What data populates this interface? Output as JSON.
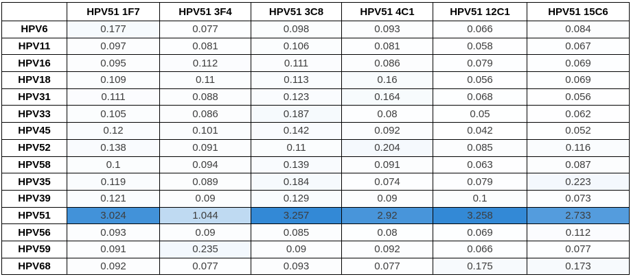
{
  "chart_data": {
    "type": "heatmap",
    "title": "",
    "corner_label": "",
    "columns": [
      "HPV51 1F7",
      "HPV51 3F4",
      "HPV51 3C8",
      "HPV51 4C1",
      "HPV51 12C1",
      "HPV51 15C6"
    ],
    "rows": [
      {
        "label": "HPV6",
        "values": [
          0.177,
          0.077,
          0.098,
          0.093,
          0.066,
          0.084
        ]
      },
      {
        "label": "HPV11",
        "values": [
          0.097,
          0.081,
          0.106,
          0.081,
          0.058,
          0.067
        ]
      },
      {
        "label": "HPV16",
        "values": [
          0.095,
          0.112,
          0.111,
          0.086,
          0.079,
          0.069
        ]
      },
      {
        "label": "HPV18",
        "values": [
          0.109,
          0.11,
          0.113,
          0.16,
          0.056,
          0.069
        ]
      },
      {
        "label": "HPV31",
        "values": [
          0.111,
          0.088,
          0.123,
          0.164,
          0.068,
          0.056
        ]
      },
      {
        "label": "HPV33",
        "values": [
          0.105,
          0.086,
          0.187,
          0.08,
          0.05,
          0.062
        ]
      },
      {
        "label": "HPV45",
        "values": [
          0.12,
          0.101,
          0.142,
          0.092,
          0.042,
          0.052
        ]
      },
      {
        "label": "HPV52",
        "values": [
          0.138,
          0.091,
          0.11,
          0.204,
          0.085,
          0.116
        ]
      },
      {
        "label": "HPV58",
        "values": [
          0.1,
          0.094,
          0.139,
          0.091,
          0.063,
          0.087
        ]
      },
      {
        "label": "HPV35",
        "values": [
          0.119,
          0.089,
          0.184,
          0.074,
          0.079,
          0.223
        ]
      },
      {
        "label": "HPV39",
        "values": [
          0.121,
          0.09,
          0.129,
          0.09,
          0.1,
          0.073
        ]
      },
      {
        "label": "HPV51",
        "values": [
          3.024,
          1.044,
          3.257,
          2.92,
          3.258,
          2.733
        ]
      },
      {
        "label": "HPV56",
        "values": [
          0.093,
          0.09,
          0.085,
          0.08,
          0.069,
          0.112
        ]
      },
      {
        "label": "HPV59",
        "values": [
          0.091,
          0.235,
          0.09,
          0.092,
          0.066,
          0.077
        ]
      },
      {
        "label": "HPV68",
        "values": [
          0.092,
          0.077,
          0.093,
          0.077,
          0.175,
          0.173
        ]
      }
    ],
    "color_scale": {
      "min_value": 0.042,
      "max_value": 3.258,
      "min_color": "#FFFFFF",
      "max_color": "#3389D6"
    },
    "value_range": [
      0.042,
      3.258
    ],
    "legend_position": "none",
    "grid": "on"
  }
}
